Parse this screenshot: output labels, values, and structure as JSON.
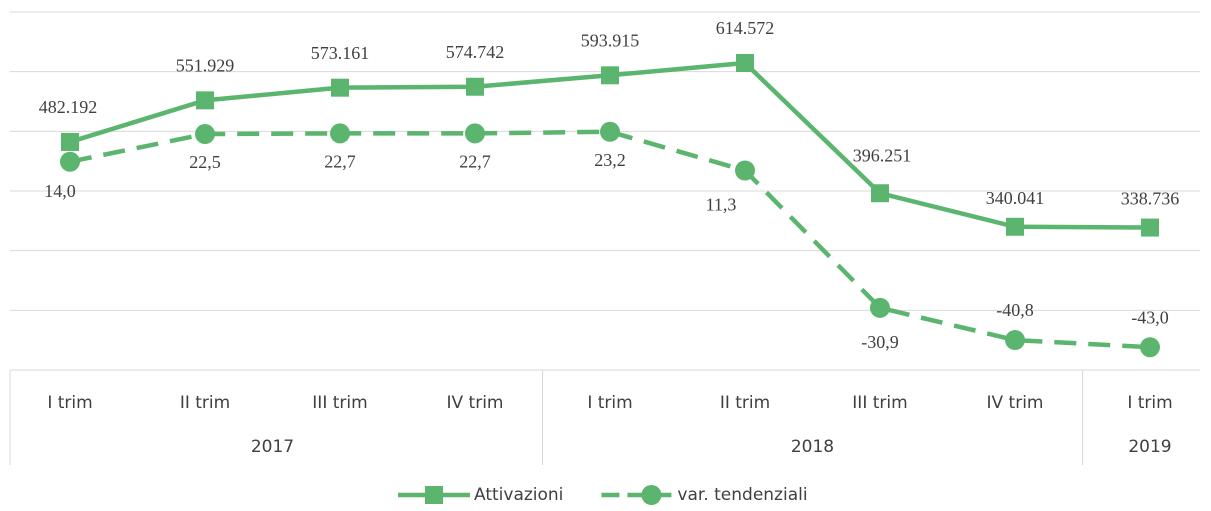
{
  "chart_data": {
    "type": "line",
    "categories": [
      "I trim",
      "II trim",
      "III trim",
      "IV trim",
      "I trim",
      "II trim",
      "III trim",
      "IV trim",
      "I trim"
    ],
    "groups": [
      {
        "label": "2017",
        "span": 4
      },
      {
        "label": "2018",
        "span": 4
      },
      {
        "label": "2019",
        "span": 1
      }
    ],
    "series": [
      {
        "name": "Attivazioni",
        "color": "#5bb56f",
        "marker": "square",
        "dashed": false,
        "values": [
          482192,
          551929,
          573161,
          574742,
          593915,
          614572,
          396251,
          340041,
          338736
        ],
        "value_labels": [
          "482.192",
          "551.929",
          "573.161",
          "574.742",
          "593.915",
          "614.572",
          "396.251",
          "340.041",
          "338.736"
        ]
      },
      {
        "name": "var. tendenziali",
        "color": "#5bb56f",
        "marker": "circle",
        "dashed": true,
        "axis": "y2",
        "values": [
          14.0,
          22.5,
          22.7,
          22.7,
          23.2,
          11.3,
          -30.9,
          -40.8,
          -43.0
        ],
        "value_labels": [
          "14,0",
          "22,5",
          "22,7",
          "22,7",
          "23,2",
          "11,3",
          "-30,9",
          "-40,8",
          "-43,0"
        ]
      }
    ],
    "ylim": [
      100000,
      700000
    ],
    "yticks": [
      100000,
      200000,
      300000,
      400000,
      500000,
      600000,
      700000
    ],
    "y2lim": [
      -50,
      60
    ],
    "grid": true,
    "legend": "bottom"
  }
}
